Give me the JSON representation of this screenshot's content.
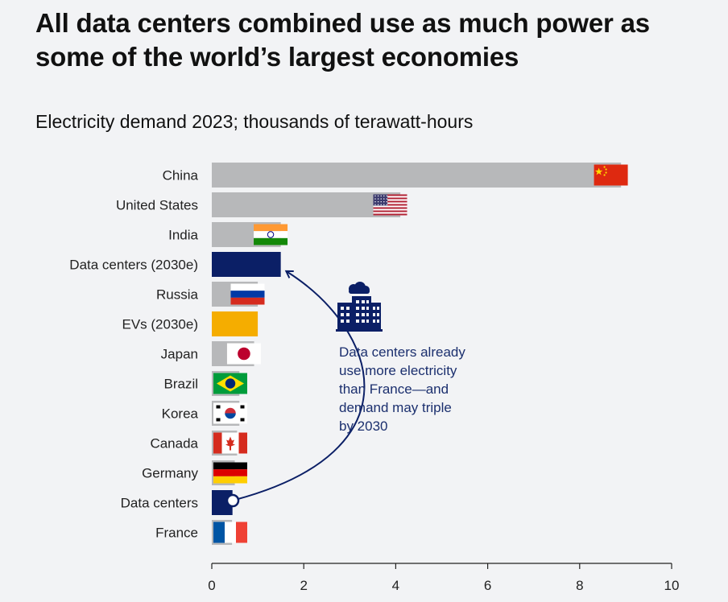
{
  "header": {
    "title": "All data centers combined use as much power as some of the world’s largest economies",
    "subtitle": "Electricity demand 2023; thousands of terawatt-hours"
  },
  "colors": {
    "background": "#f2f3f5",
    "bar_gray": "#b7b8ba",
    "data_center_navy": "#0b1f66",
    "ev_yellow": "#f5ad00",
    "annotation_navy": "#1b2f6e"
  },
  "annotation": {
    "icon": "data-center-building-cloud-icon",
    "lines": [
      "Data centers already",
      "use more electricity",
      "than France—and",
      "demand may triple",
      "by 2030"
    ]
  },
  "chart_data": {
    "type": "bar",
    "orientation": "horizontal",
    "title": "Electricity demand 2023; thousands of terawatt-hours",
    "xlim": [
      0,
      10
    ],
    "xticks": [
      0,
      2,
      4,
      6,
      8,
      10
    ],
    "categories": [
      "China",
      "United States",
      "India",
      "Data centers (2030e)",
      "Russia",
      "EVs (2030e)",
      "Japan",
      "Brazil",
      "Korea",
      "Canada",
      "Germany",
      "Data centers",
      "France"
    ],
    "values": [
      8.9,
      4.1,
      1.5,
      1.5,
      1.0,
      1.0,
      0.92,
      0.6,
      0.6,
      0.55,
      0.5,
      0.45,
      0.44
    ],
    "bar_types": [
      "country",
      "country",
      "country",
      "datacenter",
      "country",
      "ev",
      "country",
      "country",
      "country",
      "country",
      "country",
      "datacenter",
      "country"
    ],
    "flags": [
      "china-flag",
      "us-flag",
      "india-flag",
      null,
      "russia-flag",
      null,
      "japan-flag",
      "brazil-flag",
      "korea-flag",
      "canada-flag",
      "germany-flag",
      null,
      "france-flag"
    ]
  }
}
